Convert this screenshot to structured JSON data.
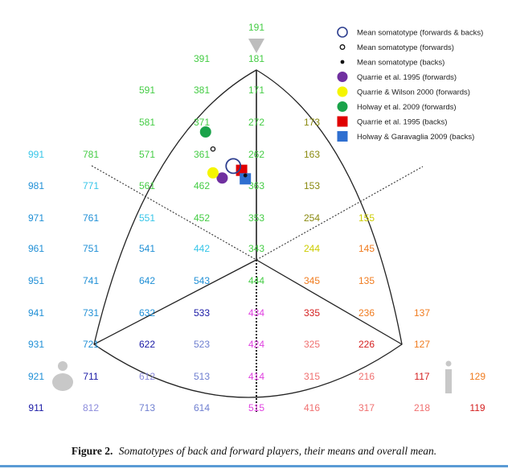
{
  "chart_data": {
    "type": "scatter",
    "subtype": "somatochart",
    "title": "",
    "caption": {
      "label": "Figure 2.",
      "text": "Somatotypes of back and forward players, their means and overall mean."
    },
    "somatotype_labels": [
      {
        "text": "191",
        "color": "#44cc44"
      },
      {
        "text": "391",
        "color": "#44cc44"
      },
      {
        "text": "181",
        "color": "#44cc44"
      },
      {
        "text": "591",
        "color": "#44cc44"
      },
      {
        "text": "381",
        "color": "#44cc44"
      },
      {
        "text": "171",
        "color": "#44cc44"
      },
      {
        "text": "581",
        "color": "#44cc44"
      },
      {
        "text": "371",
        "color": "#44cc44"
      },
      {
        "text": "272",
        "color": "#44cc44"
      },
      {
        "text": "173",
        "color": "#8a8a10"
      },
      {
        "text": "991",
        "color": "#35c5e8"
      },
      {
        "text": "781",
        "color": "#44cc44"
      },
      {
        "text": "571",
        "color": "#44cc44"
      },
      {
        "text": "361",
        "color": "#44cc44"
      },
      {
        "text": "262",
        "color": "#44cc44"
      },
      {
        "text": "163",
        "color": "#8a8a10"
      },
      {
        "text": "981",
        "color": "#1f8fd6"
      },
      {
        "text": "771",
        "color": "#35c5e8"
      },
      {
        "text": "561",
        "color": "#44cc44"
      },
      {
        "text": "462",
        "color": "#44cc44"
      },
      {
        "text": "363",
        "color": "#44cc44"
      },
      {
        "text": "153",
        "color": "#8a8a10"
      },
      {
        "text": "971",
        "color": "#1f8fd6"
      },
      {
        "text": "761",
        "color": "#1f8fd6"
      },
      {
        "text": "551",
        "color": "#35c5e8"
      },
      {
        "text": "452",
        "color": "#44cc44"
      },
      {
        "text": "353",
        "color": "#44cc44"
      },
      {
        "text": "254",
        "color": "#8a8a10"
      },
      {
        "text": "155",
        "color": "#cccc00"
      },
      {
        "text": "961",
        "color": "#1f8fd6"
      },
      {
        "text": "751",
        "color": "#1f8fd6"
      },
      {
        "text": "541",
        "color": "#1f8fd6"
      },
      {
        "text": "442",
        "color": "#35c5e8"
      },
      {
        "text": "343",
        "color": "#44cc44"
      },
      {
        "text": "244",
        "color": "#cccc00"
      },
      {
        "text": "145",
        "color": "#f07b1e"
      },
      {
        "text": "951",
        "color": "#1f8fd6"
      },
      {
        "text": "741",
        "color": "#1f8fd6"
      },
      {
        "text": "642",
        "color": "#1f8fd6"
      },
      {
        "text": "543",
        "color": "#1f8fd6"
      },
      {
        "text": "444",
        "color": "#44cc44"
      },
      {
        "text": "345",
        "color": "#f07b1e"
      },
      {
        "text": "135",
        "color": "#f07b1e"
      },
      {
        "text": "941",
        "color": "#1f8fd6"
      },
      {
        "text": "731",
        "color": "#1f8fd6"
      },
      {
        "text": "632",
        "color": "#1f8fd6"
      },
      {
        "text": "533",
        "color": "#1a1aa6"
      },
      {
        "text": "434",
        "color": "#e040e0"
      },
      {
        "text": "335",
        "color": "#d41f1f"
      },
      {
        "text": "236",
        "color": "#f07b1e"
      },
      {
        "text": "137",
        "color": "#f07b1e"
      },
      {
        "text": "931",
        "color": "#1f8fd6"
      },
      {
        "text": "721",
        "color": "#1f8fd6"
      },
      {
        "text": "622",
        "color": "#1a1aa6"
      },
      {
        "text": "523",
        "color": "#6f7fd0"
      },
      {
        "text": "424",
        "color": "#e040e0"
      },
      {
        "text": "325",
        "color": "#f07070"
      },
      {
        "text": "226",
        "color": "#d41f1f"
      },
      {
        "text": "127",
        "color": "#f07b1e"
      },
      {
        "text": "921",
        "color": "#1f8fd6"
      },
      {
        "text": "711",
        "color": "#1a1aa6"
      },
      {
        "text": "612",
        "color": "#8c8cdc"
      },
      {
        "text": "513",
        "color": "#6f7fd0"
      },
      {
        "text": "414",
        "color": "#e040e0"
      },
      {
        "text": "315",
        "color": "#f07070"
      },
      {
        "text": "216",
        "color": "#f07070"
      },
      {
        "text": "117",
        "color": "#d41f1f"
      },
      {
        "text": "129",
        "color": "#f07b1e"
      },
      {
        "text": "911",
        "color": "#1a1aa6"
      },
      {
        "text": "812",
        "color": "#8c8cdc"
      },
      {
        "text": "713",
        "color": "#6f7fd0"
      },
      {
        "text": "614",
        "color": "#6f7fd0"
      },
      {
        "text": "515",
        "color": "#e040e0"
      },
      {
        "text": "416",
        "color": "#f07070"
      },
      {
        "text": "317",
        "color": "#f07070"
      },
      {
        "text": "218",
        "color": "#f07070"
      },
      {
        "text": "119",
        "color": "#d41f1f"
      }
    ],
    "series": [
      {
        "name": "Mean somatotype (forwards & backs)",
        "marker": "open-circle-large",
        "color": "#2e3f8f",
        "points": [
          {
            "x": -2.5,
            "y": 11
          }
        ]
      },
      {
        "name": "Mean somatotype (forwards)",
        "marker": "open-circle-small",
        "color": "#111111",
        "points": [
          {
            "x": -4.7,
            "y": 13
          }
        ]
      },
      {
        "name": "Mean somatotype (backs)",
        "marker": "dot",
        "color": "#111111",
        "points": [
          {
            "x": -1.2,
            "y": 9.9
          }
        ]
      },
      {
        "name": "Quarrie et al. 1995 (forwards)",
        "marker": "circle",
        "color": "#7030a0",
        "points": [
          {
            "x": -3.7,
            "y": 9.6
          }
        ]
      },
      {
        "name": "Quarrie & Wilson 2000 (forwards)",
        "marker": "circle",
        "color": "#f5f500",
        "points": [
          {
            "x": -4.7,
            "y": 10.2
          }
        ]
      },
      {
        "name": "Holway et al. 2009 (forwards)",
        "marker": "circle",
        "color": "#1aa34a",
        "points": [
          {
            "x": -5.5,
            "y": 15
          }
        ]
      },
      {
        "name": "Quarrie et al. 1995 (backs)",
        "marker": "square",
        "color": "#e00000",
        "points": [
          {
            "x": -1.6,
            "y": 10.5
          }
        ]
      },
      {
        "name": "Holway & Garavaglia 2009 (backs)",
        "marker": "square",
        "color": "#2f6fd0",
        "points": [
          {
            "x": -1.2,
            "y": 9.5
          }
        ]
      }
    ],
    "legend_position": "top-right",
    "mean_marker_value": "191",
    "grid": false
  }
}
